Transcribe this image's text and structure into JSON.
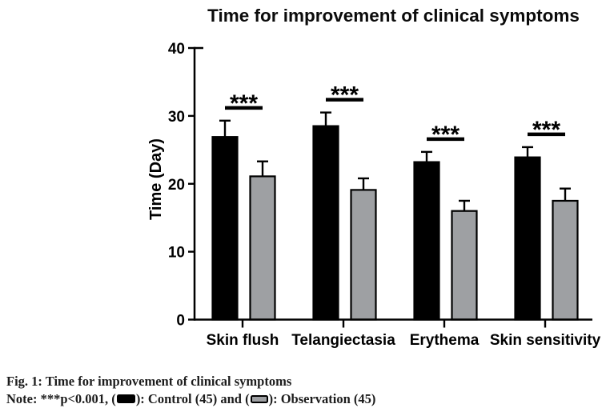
{
  "chart_data": {
    "type": "bar",
    "title": "Time for improvement of clinical symptoms",
    "categories": [
      "Skin flush",
      "Telangiectasia",
      "Erythema",
      "Skin sensitivity"
    ],
    "series": [
      {
        "name": "Control (45)",
        "color": "#000000",
        "values": [
          26.9,
          28.5,
          23.2,
          23.9
        ],
        "errors": [
          2.4,
          2.0,
          1.5,
          1.5
        ]
      },
      {
        "name": "Observation (45)",
        "color": "#9EA0A3",
        "values": [
          21.1,
          19.1,
          16.0,
          17.5
        ],
        "errors": [
          2.2,
          1.7,
          1.5,
          1.8
        ]
      }
    ],
    "significance": [
      "***",
      "***",
      "***",
      "***"
    ],
    "xlabel": "",
    "ylabel": "Time (Day)",
    "yticks": [
      0,
      10,
      20,
      30,
      40
    ],
    "ylim": [
      0,
      40
    ],
    "grid": false,
    "legend_position": "in caption below figure",
    "bar_edge_color": "#000000"
  },
  "caption": {
    "fig_line": "Fig. 1: Time for improvement of clinical symptoms",
    "note_prefix": "Note: ***p<0.001, (",
    "note_mid": "): Control (45) and (",
    "note_suffix": "): Observation (45)"
  }
}
